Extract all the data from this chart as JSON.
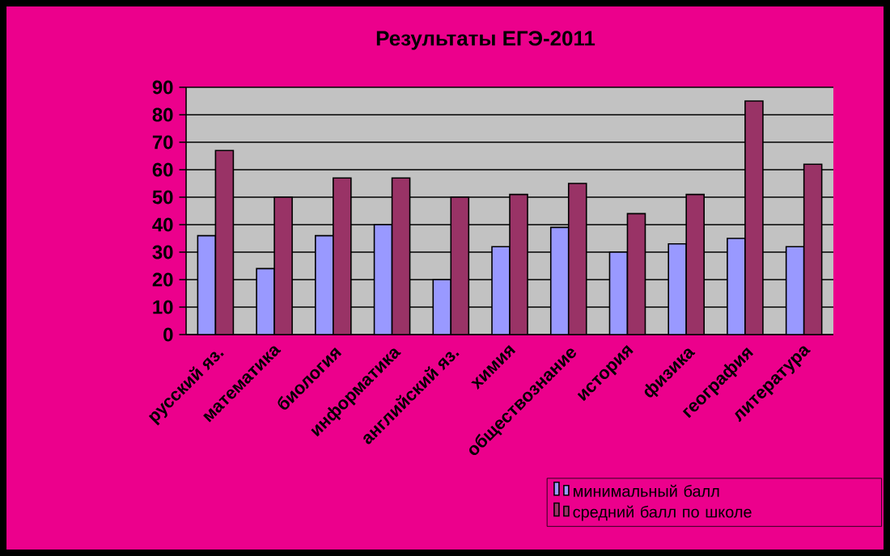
{
  "chart_data": {
    "type": "bar",
    "title": "Результаты ЕГЭ-2011",
    "categories": [
      "русский яз.",
      "математика",
      "биология",
      "информатика",
      "английский яз.",
      "химия",
      "обществознание",
      "история",
      "физика",
      "география",
      "литература"
    ],
    "series": [
      {
        "name": "минимальный балл",
        "color": "#9999ff",
        "values": [
          36,
          24,
          36,
          40,
          20,
          32,
          39,
          30,
          33,
          35,
          32
        ]
      },
      {
        "name": "средний балл по школе",
        "color": "#993366",
        "values": [
          67,
          50,
          57,
          57,
          50,
          51,
          55,
          44,
          51,
          85,
          62
        ]
      }
    ],
    "ylim": [
      0,
      90
    ],
    "yticks": [
      0,
      10,
      20,
      30,
      40,
      50,
      60,
      70,
      80,
      90
    ],
    "grid": "y",
    "legend": "bottom right"
  }
}
